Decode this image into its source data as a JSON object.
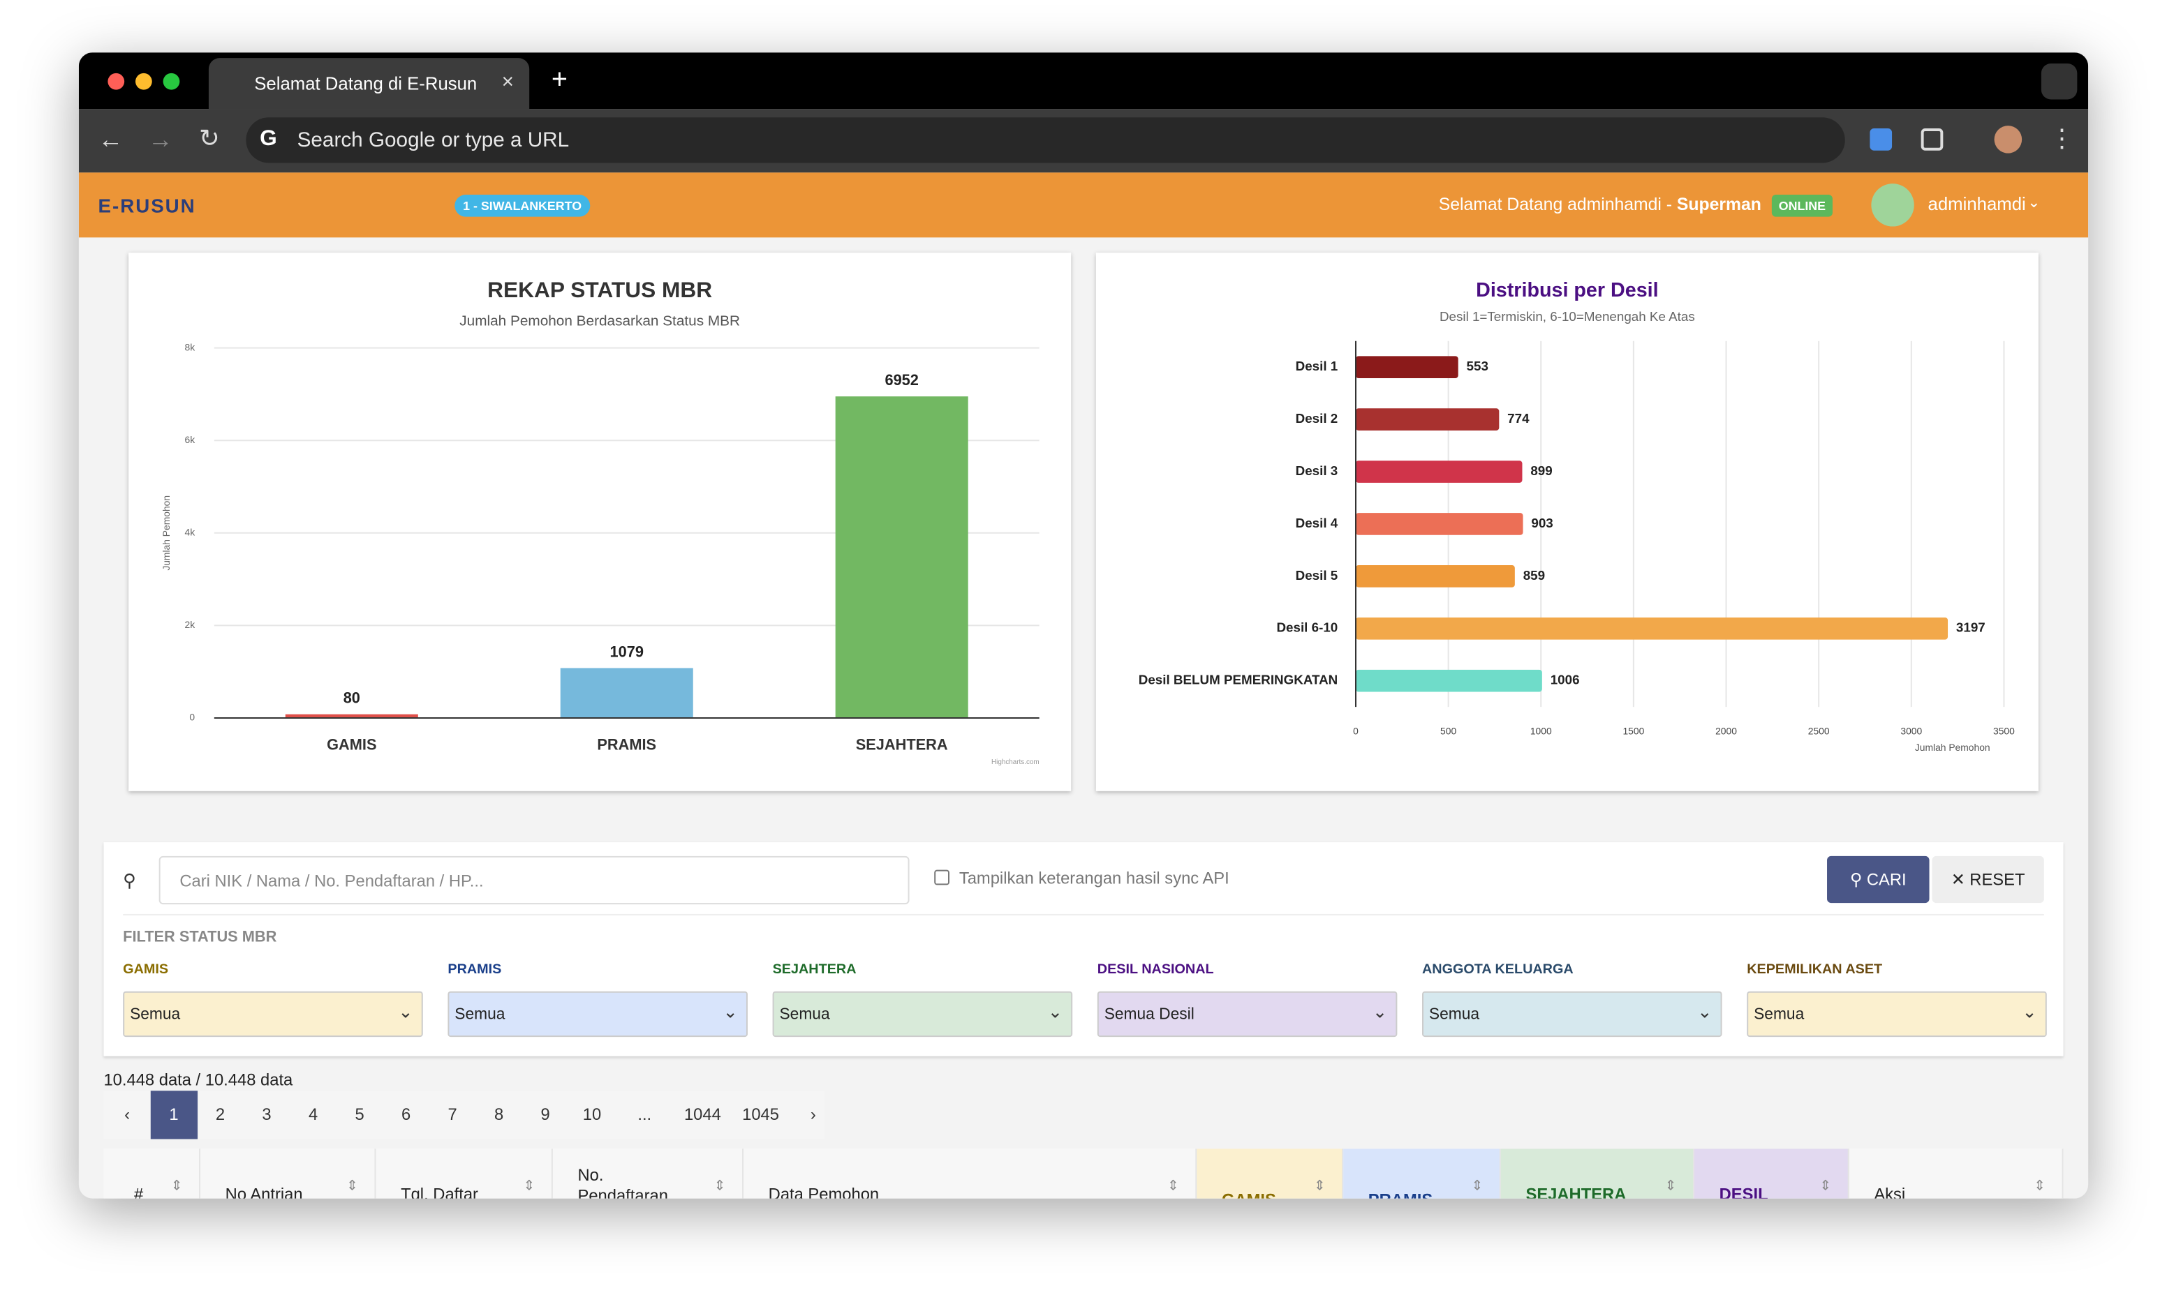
{
  "browser": {
    "tab_title": "Selamat Datang di E-Rusun",
    "address_placeholder": "Search Google or type a URL"
  },
  "header": {
    "logo": "E-RUSUN",
    "location_badge": "1 - SIWALANKERTO",
    "welcome": "Selamat Datang adminhamdi - ",
    "role": "Superman",
    "status": "ONLINE",
    "user": "adminhamdi"
  },
  "chart_data": [
    {
      "type": "column",
      "title": "REKAP STATUS MBR",
      "subtitle": "Jumlah Pemohon Berdasarkan Status MBR",
      "y_label": "Jumlah Pemohon",
      "categories": [
        "GAMIS",
        "PRAMIS",
        "SEJAHTERA"
      ],
      "values": [
        80,
        1079,
        6952
      ],
      "colors": [
        "#e0504a",
        "#76b9dc",
        "#72b862"
      ],
      "ylim": [
        0,
        8000
      ],
      "yticks": [
        0,
        {
          "value": 2000,
          "label": "2k"
        },
        {
          "value": 4000,
          "label": "4k"
        },
        {
          "value": 6000,
          "label": "6k"
        },
        {
          "value": 8000,
          "label": "8k"
        }
      ],
      "grid": true,
      "credit": "Highcharts.com"
    },
    {
      "type": "bar",
      "title": "Distribusi per Desil",
      "subtitle": "Desil 1=Termiskin, 6-10=Menengah Ke Atas",
      "x_label": "Jumlah Pemohon",
      "categories": [
        "Desil 1",
        "Desil 2",
        "Desil 3",
        "Desil 4",
        "Desil 5",
        "Desil 6-10",
        "Desil BELUM PEMERINGKATAN"
      ],
      "values": [
        553,
        774,
        899,
        903,
        859,
        3197,
        1006
      ],
      "colors": [
        "#8b1a1a",
        "#a8312f",
        "#d0344a",
        "#ec6f56",
        "#ef9a3a",
        "#f2a84a",
        "#6fdcc9"
      ],
      "xlim": [
        0,
        3500
      ],
      "xticks": [
        0,
        500,
        1000,
        1500,
        2000,
        2500,
        3000,
        3500
      ],
      "grid": true
    }
  ],
  "search": {
    "placeholder": "Cari NIK / Nama / No. Pendaftaran / HP...",
    "checkbox": "Tampilkan keterangan hasil sync API",
    "search_button": "CARI",
    "reset_button": "RESET"
  },
  "filters": {
    "title": "FILTER STATUS MBR",
    "items": [
      {
        "label": "GAMIS",
        "value": "Semua"
      },
      {
        "label": "PRAMIS",
        "value": "Semua"
      },
      {
        "label": "SEJAHTERA",
        "value": "Semua"
      },
      {
        "label": "DESIL NASIONAL",
        "value": "Semua Desil"
      },
      {
        "label": "ANGGOTA KELUARGA",
        "value": "Semua"
      },
      {
        "label": "KEPEMILIKAN ASET",
        "value": "Semua"
      }
    ]
  },
  "pagination": {
    "summary": "10.448 data / 10.448 data",
    "prev": "‹",
    "pages": [
      "1",
      "2",
      "3",
      "4",
      "5",
      "6",
      "7",
      "8",
      "9",
      "10",
      "...",
      "1044",
      "1045"
    ],
    "next": "›"
  },
  "table": {
    "headers": [
      "#",
      "No Antrian",
      "Tgl. Daftar",
      "No. Pendaftaran",
      "Data Pemohon",
      "GAMIS",
      "PRAMIS",
      "SEJAHTERA",
      "DESIL",
      "Aksi"
    ]
  }
}
